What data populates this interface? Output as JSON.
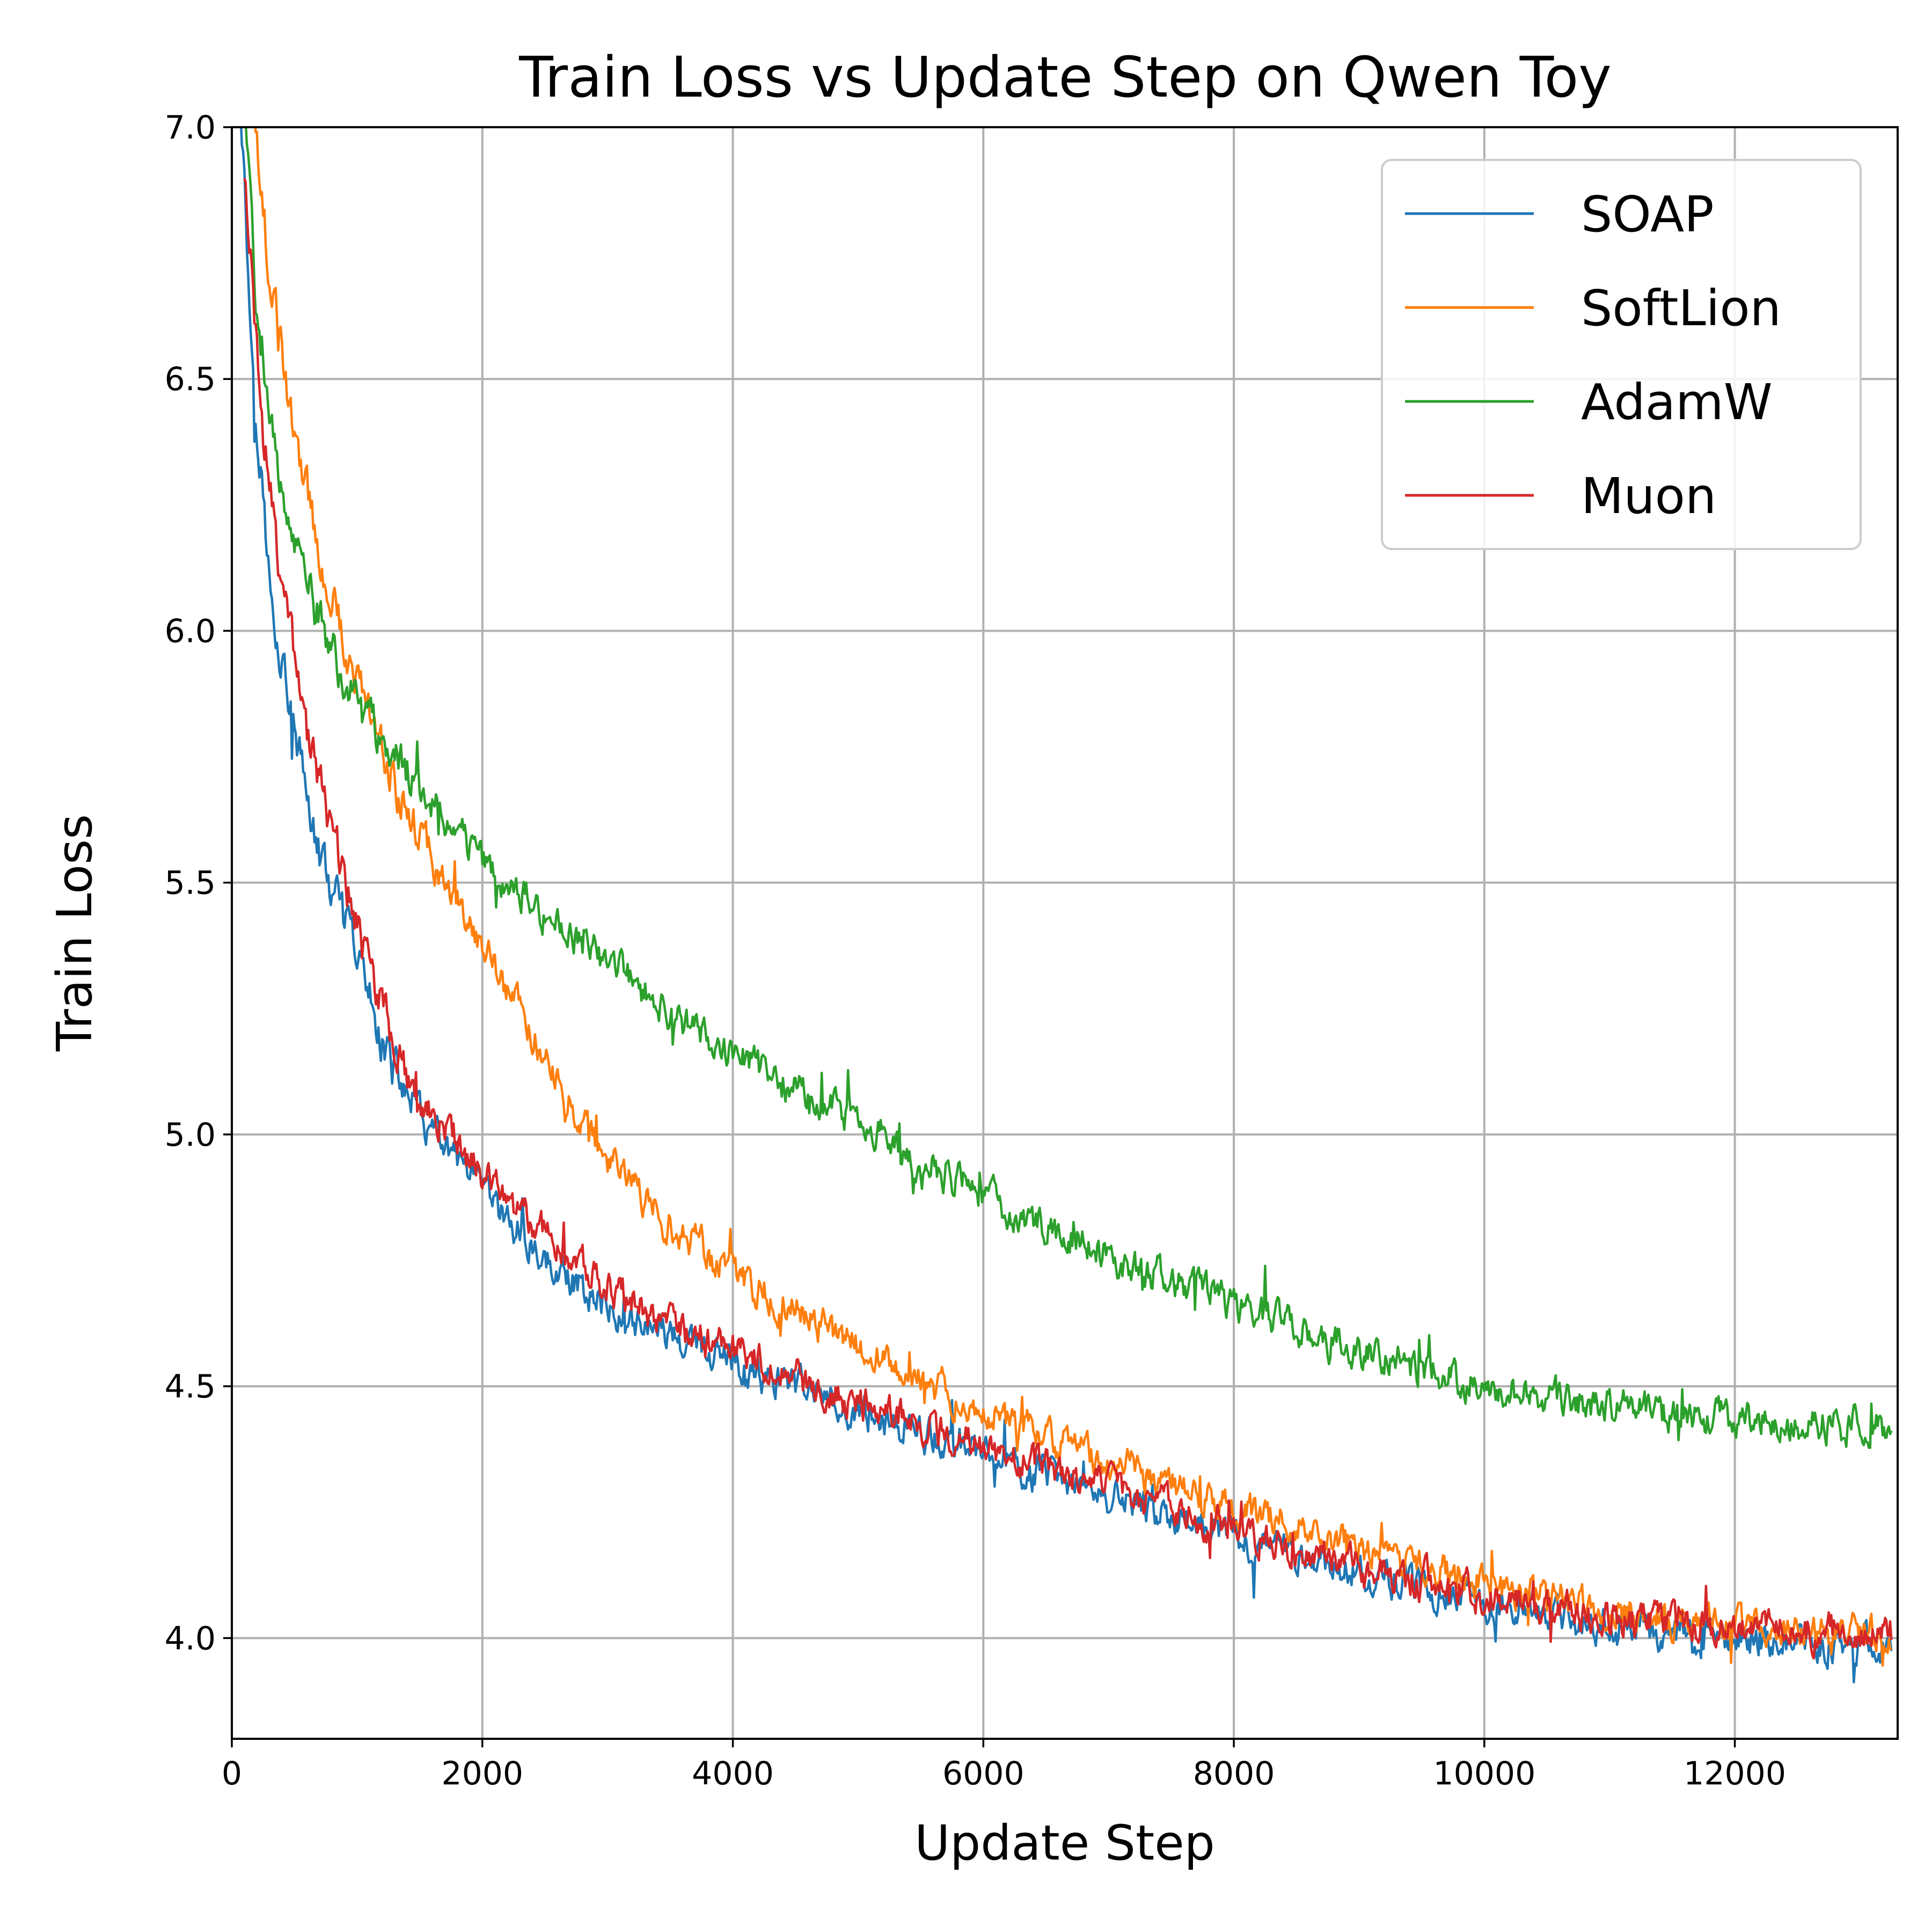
{
  "chart_data": {
    "type": "line",
    "title": "Train Loss vs Update Step on Qwen Toy",
    "xlabel": "Update Step",
    "ylabel": "Train Loss",
    "xlim": [
      0,
      13300
    ],
    "ylim": [
      3.8,
      7.0
    ],
    "xticks": [
      0,
      2000,
      4000,
      6000,
      8000,
      10000,
      12000
    ],
    "xtick_labels": [
      "0",
      "2000",
      "4000",
      "6000",
      "8000",
      "10000",
      "12000"
    ],
    "yticks": [
      4.0,
      4.5,
      5.0,
      5.5,
      6.0,
      6.5,
      7.0
    ],
    "ytick_labels": [
      "4.0",
      "4.5",
      "5.0",
      "5.5",
      "6.0",
      "6.5",
      "7.0"
    ],
    "grid": true,
    "legend_position": "top-right",
    "series": [
      {
        "name": "SOAP",
        "color": "#1f77b4",
        "x": [
          50,
          150,
          300,
          500,
          700,
          1000,
          1300,
          1600,
          2000,
          2500,
          3000,
          3500,
          4000,
          5000,
          6000,
          7000,
          8000,
          9000,
          10000,
          11000,
          12000,
          13250
        ],
        "y": [
          7.2,
          6.6,
          6.1,
          5.8,
          5.55,
          5.35,
          5.12,
          5.0,
          4.88,
          4.75,
          4.66,
          4.6,
          4.54,
          4.45,
          4.36,
          4.28,
          4.2,
          4.13,
          4.07,
          4.02,
          4.0,
          3.98
        ]
      },
      {
        "name": "SoftLion",
        "color": "#ff7f0e",
        "x": [
          150,
          300,
          500,
          700,
          1000,
          1300,
          1600,
          2000,
          2500,
          3000,
          3500,
          4000,
          5000,
          6000,
          7000,
          8000,
          9000,
          10000,
          11000,
          12000,
          13250
        ],
        "y": [
          7.1,
          6.7,
          6.4,
          6.15,
          5.9,
          5.7,
          5.55,
          5.38,
          5.15,
          4.95,
          4.82,
          4.72,
          4.58,
          4.45,
          4.35,
          4.26,
          4.18,
          4.11,
          4.05,
          4.02,
          4.01
        ]
      },
      {
        "name": "AdamW",
        "color": "#2ca02c",
        "x": [
          100,
          200,
          400,
          700,
          1000,
          1300,
          1600,
          2000,
          2500,
          3000,
          3500,
          4000,
          5000,
          6000,
          7000,
          8000,
          9000,
          10000,
          11000,
          12000,
          13250
        ],
        "y": [
          7.05,
          6.6,
          6.25,
          6.02,
          5.85,
          5.74,
          5.66,
          5.54,
          5.44,
          5.34,
          5.24,
          5.16,
          5.02,
          4.88,
          4.76,
          4.66,
          4.57,
          4.5,
          4.46,
          4.43,
          4.42
        ]
      },
      {
        "name": "Muon",
        "color": "#d62728",
        "x": [
          100,
          250,
          400,
          600,
          900,
          1200,
          1500,
          2000,
          2500,
          3000,
          3500,
          4000,
          5000,
          6000,
          7000,
          8000,
          9000,
          10000,
          11000,
          12000,
          13250
        ],
        "y": [
          6.9,
          6.4,
          6.08,
          5.8,
          5.5,
          5.25,
          5.07,
          4.92,
          4.8,
          4.7,
          4.62,
          4.57,
          4.47,
          4.38,
          4.3,
          4.21,
          4.14,
          4.09,
          4.04,
          4.02,
          4.01
        ]
      }
    ]
  }
}
